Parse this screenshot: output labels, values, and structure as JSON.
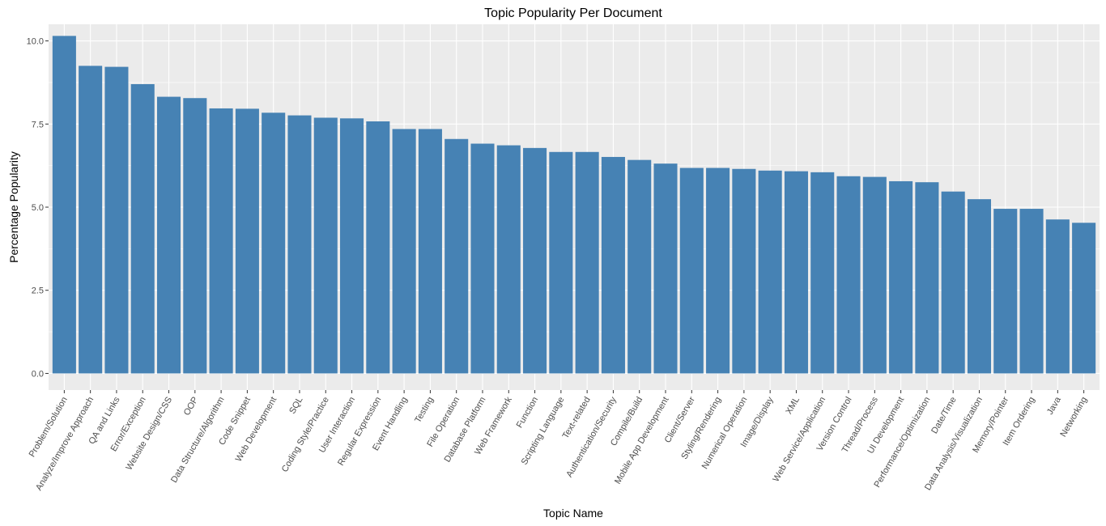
{
  "chart_data": {
    "type": "bar",
    "title": "Topic Popularity Per Document",
    "xlabel": "Topic Name",
    "ylabel": "Percentage Popularity",
    "ylim": [
      0,
      10.5
    ],
    "yticks": [
      0.0,
      2.5,
      5.0,
      7.5,
      10.0
    ],
    "ytick_labels": [
      "0.0",
      "2.5",
      "5.0",
      "7.5",
      "10.0"
    ],
    "grid": true,
    "bar_color": "#4682B4",
    "panel_background": "#EBEBEB",
    "grid_color": "#FFFFFF",
    "categories": [
      "Problem/Solution",
      "Analyze/Improve Approach",
      "QA and Links",
      "Error/Exception",
      "Website Design/CSS",
      "OOP",
      "Data Structure/Algorithm",
      "Code Snippet",
      "Web Development",
      "SQL",
      "Coding Style/Practice",
      "User Interaction",
      "Regular Expression",
      "Event Handling",
      "Testing",
      "File Operation",
      "Database Platform",
      "Web Framework",
      "Function",
      "Scripting Language",
      "Text-related",
      "Authentication/Security",
      "Compile/Build",
      "Mobile App Development",
      "Client/Server",
      "Styling/Rendering",
      "Numerical Operation",
      "Image/Display",
      "XML",
      "Web Service/Application",
      "Version Control",
      "Thread/Process",
      "UI Development",
      "Performance/Optimization",
      "Date/Time",
      "Data Analysis/Visualization",
      "Memory/Pointer",
      "Item Ordering",
      "Java",
      "Networking"
    ],
    "values": [
      10.15,
      9.25,
      9.22,
      8.7,
      8.32,
      8.28,
      7.97,
      7.96,
      7.84,
      7.76,
      7.69,
      7.67,
      7.58,
      7.35,
      7.35,
      7.05,
      6.91,
      6.86,
      6.78,
      6.66,
      6.66,
      6.51,
      6.42,
      6.31,
      6.18,
      6.18,
      6.15,
      6.1,
      6.08,
      6.05,
      5.93,
      5.91,
      5.78,
      5.75,
      5.47,
      5.24,
      4.95,
      4.95,
      4.63,
      4.53
    ]
  }
}
